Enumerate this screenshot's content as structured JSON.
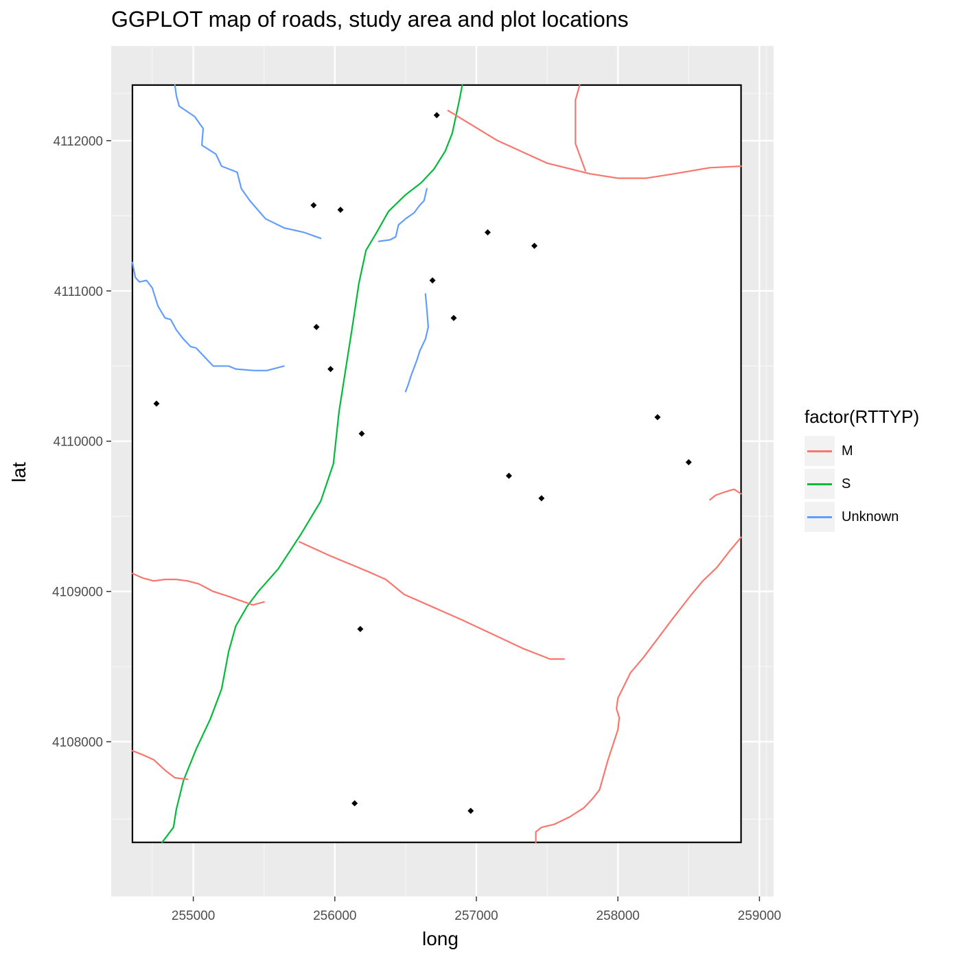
{
  "chart_data": {
    "type": "map",
    "title": "GGPLOT map of roads, study area and plot locations",
    "xlabel": "long",
    "ylabel": "lat",
    "xlim": [
      254420,
      259100
    ],
    "ylim": [
      4106970,
      4112630
    ],
    "x_ticks": [
      255000,
      256000,
      257000,
      258000,
      259000
    ],
    "y_ticks": [
      4108000,
      4109000,
      4110000,
      4111000,
      4112000
    ],
    "x_tick_labels": [
      "255000",
      "256000",
      "257000",
      "258000",
      "259000"
    ],
    "y_tick_labels": [
      "4108000",
      "4109000",
      "4110000",
      "4111000",
      "4112000"
    ],
    "legend": {
      "title": "factor(RTTYP)",
      "placement": "right",
      "entries": [
        {
          "label": "M",
          "color": "#F8766D"
        },
        {
          "label": "S",
          "color": "#00BA38"
        },
        {
          "label": "Unknown",
          "color": "#619CFF"
        }
      ]
    },
    "study_area": {
      "xmin": 254570,
      "xmax": 258870,
      "ymin": 4107330,
      "ymax": 4112370
    },
    "plots": [
      {
        "x": 256720,
        "y": 4112170
      },
      {
        "x": 255850,
        "y": 4111570
      },
      {
        "x": 256040,
        "y": 4111540
      },
      {
        "x": 257080,
        "y": 4111390
      },
      {
        "x": 257410,
        "y": 4111300
      },
      {
        "x": 256690,
        "y": 4111070
      },
      {
        "x": 256840,
        "y": 4110820
      },
      {
        "x": 255870,
        "y": 4110760
      },
      {
        "x": 255970,
        "y": 4110480
      },
      {
        "x": 254740,
        "y": 4110250
      },
      {
        "x": 256190,
        "y": 4110050
      },
      {
        "x": 258280,
        "y": 4110160
      },
      {
        "x": 258500,
        "y": 4109860
      },
      {
        "x": 257230,
        "y": 4109770
      },
      {
        "x": 257460,
        "y": 4109620
      },
      {
        "x": 256180,
        "y": 4108750
      },
      {
        "x": 256140,
        "y": 4107590
      },
      {
        "x": 256960,
        "y": 4107540
      }
    ],
    "roads": [
      {
        "type": "S",
        "points": [
          [
            256900,
            4112370
          ],
          [
            256880,
            4112270
          ],
          [
            256830,
            4112050
          ],
          [
            256780,
            4111930
          ],
          [
            256700,
            4111810
          ],
          [
            256610,
            4111720
          ],
          [
            256500,
            4111640
          ],
          [
            256380,
            4111530
          ],
          [
            256290,
            4111380
          ],
          [
            256220,
            4111270
          ],
          [
            256170,
            4111050
          ],
          [
            256130,
            4110800
          ],
          [
            256080,
            4110500
          ],
          [
            256030,
            4110200
          ],
          [
            255990,
            4109850
          ],
          [
            255900,
            4109600
          ],
          [
            255760,
            4109380
          ],
          [
            255600,
            4109150
          ],
          [
            255460,
            4109000
          ],
          [
            255380,
            4108900
          ],
          [
            255300,
            4108770
          ],
          [
            255250,
            4108600
          ],
          [
            255200,
            4108350
          ],
          [
            255120,
            4108150
          ],
          [
            255020,
            4107950
          ],
          [
            254930,
            4107740
          ],
          [
            254880,
            4107550
          ],
          [
            254860,
            4107430
          ],
          [
            254780,
            4107330
          ]
        ]
      },
      {
        "type": "M",
        "points": [
          [
            254570,
            4109120
          ],
          [
            254640,
            4109090
          ],
          [
            254720,
            4109070
          ],
          [
            254800,
            4109080
          ],
          [
            254880,
            4109080
          ],
          [
            254960,
            4109070
          ],
          [
            255040,
            4109050
          ],
          [
            255140,
            4109000
          ],
          [
            255240,
            4108970
          ],
          [
            255330,
            4108940
          ],
          [
            255420,
            4108910
          ],
          [
            255500,
            4108930
          ]
        ]
      },
      {
        "type": "M",
        "points": [
          [
            255750,
            4109330
          ],
          [
            255960,
            4109240
          ],
          [
            256240,
            4109130
          ],
          [
            256360,
            4109080
          ],
          [
            256490,
            4108980
          ],
          [
            256900,
            4108810
          ],
          [
            257330,
            4108620
          ],
          [
            257440,
            4108580
          ],
          [
            257520,
            4108550
          ],
          [
            257620,
            4108550
          ]
        ]
      },
      {
        "type": "M",
        "points": [
          [
            256800,
            4112200
          ],
          [
            257150,
            4112000
          ],
          [
            257500,
            4111850
          ],
          [
            257800,
            4111780
          ],
          [
            258000,
            4111750
          ],
          [
            258200,
            4111750
          ],
          [
            258400,
            4111780
          ],
          [
            258650,
            4111820
          ],
          [
            258870,
            4111830
          ]
        ]
      },
      {
        "type": "M",
        "points": [
          [
            257730,
            4112370
          ],
          [
            257700,
            4112270
          ],
          [
            257700,
            4111980
          ],
          [
            257770,
            4111800
          ]
        ]
      },
      {
        "type": "M",
        "points": [
          [
            254570,
            4107940
          ],
          [
            254650,
            4107910
          ],
          [
            254720,
            4107880
          ],
          [
            254800,
            4107810
          ],
          [
            254870,
            4107760
          ],
          [
            254960,
            4107750
          ]
        ]
      },
      {
        "type": "M",
        "points": [
          [
            257420,
            4107330
          ],
          [
            257420,
            4107400
          ],
          [
            257460,
            4107430
          ],
          [
            257550,
            4107450
          ],
          [
            257660,
            4107500
          ],
          [
            257760,
            4107560
          ],
          [
            257820,
            4107620
          ],
          [
            257870,
            4107680
          ],
          [
            257930,
            4107880
          ],
          [
            258000,
            4108080
          ],
          [
            258010,
            4108160
          ],
          [
            257990,
            4108220
          ],
          [
            258000,
            4108290
          ],
          [
            258090,
            4108460
          ],
          [
            258180,
            4108560
          ],
          [
            258260,
            4108660
          ],
          [
            258380,
            4108810
          ],
          [
            258520,
            4108980
          ],
          [
            258600,
            4109070
          ],
          [
            258700,
            4109160
          ],
          [
            258790,
            4109270
          ],
          [
            258870,
            4109360
          ]
        ]
      },
      {
        "type": "M",
        "points": [
          [
            258650,
            4109610
          ],
          [
            258690,
            4109640
          ],
          [
            258750,
            4109660
          ],
          [
            258820,
            4109680
          ],
          [
            258870,
            4109650
          ]
        ]
      },
      {
        "type": "Unknown",
        "points": [
          [
            254870,
            4112370
          ],
          [
            254880,
            4112300
          ],
          [
            254900,
            4112230
          ],
          [
            255010,
            4112160
          ],
          [
            255070,
            4112080
          ],
          [
            255060,
            4111970
          ],
          [
            255160,
            4111910
          ],
          [
            255200,
            4111830
          ],
          [
            255310,
            4111790
          ],
          [
            255340,
            4111680
          ],
          [
            255400,
            4111600
          ],
          [
            255510,
            4111480
          ],
          [
            255640,
            4111420
          ],
          [
            255780,
            4111390
          ],
          [
            255900,
            4111350
          ]
        ]
      },
      {
        "type": "Unknown",
        "points": [
          [
            254570,
            4111190
          ],
          [
            254590,
            4111090
          ],
          [
            254620,
            4111060
          ],
          [
            254670,
            4111070
          ],
          [
            254710,
            4111020
          ],
          [
            254750,
            4110900
          ],
          [
            254800,
            4110820
          ],
          [
            254840,
            4110810
          ],
          [
            254880,
            4110740
          ],
          [
            254930,
            4110680
          ],
          [
            254980,
            4110630
          ],
          [
            255020,
            4110620
          ],
          [
            255080,
            4110560
          ],
          [
            255140,
            4110500
          ],
          [
            255250,
            4110500
          ],
          [
            255300,
            4110480
          ],
          [
            255430,
            4110470
          ],
          [
            255520,
            4110470
          ],
          [
            255640,
            4110500
          ]
        ]
      },
      {
        "type": "Unknown",
        "points": [
          [
            256310,
            4111330
          ],
          [
            256390,
            4111340
          ],
          [
            256430,
            4111360
          ],
          [
            256450,
            4111440
          ],
          [
            256500,
            4111480
          ],
          [
            256560,
            4111520
          ],
          [
            256600,
            4111570
          ],
          [
            256630,
            4111600
          ],
          [
            256650,
            4111680
          ]
        ]
      },
      {
        "type": "Unknown",
        "points": [
          [
            256640,
            4110980
          ],
          [
            256650,
            4110880
          ],
          [
            256660,
            4110760
          ],
          [
            256640,
            4110680
          ],
          [
            256600,
            4110600
          ],
          [
            256580,
            4110540
          ],
          [
            256560,
            4110490
          ],
          [
            256540,
            4110440
          ],
          [
            256520,
            4110380
          ],
          [
            256500,
            4110330
          ]
        ]
      }
    ]
  }
}
